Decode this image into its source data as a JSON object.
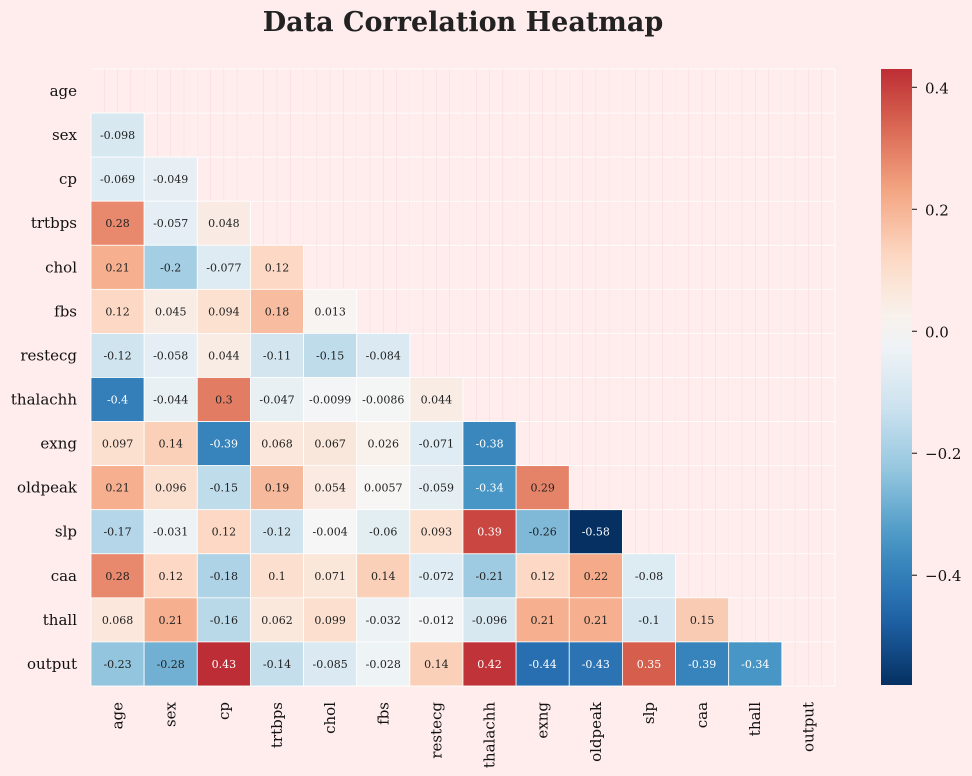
{
  "chart_data": {
    "type": "heatmap",
    "title": "Data Correlation Heatmap",
    "variables": [
      "age",
      "sex",
      "cp",
      "trtbps",
      "chol",
      "fbs",
      "restecg",
      "thalachh",
      "exng",
      "oldpeak",
      "slp",
      "caa",
      "thall",
      "output"
    ],
    "mask": "upper-triangle-including-diagonal",
    "values": [
      [],
      [
        -0.098
      ],
      [
        -0.069,
        -0.049
      ],
      [
        0.28,
        -0.057,
        0.048
      ],
      [
        0.21,
        -0.2,
        -0.077,
        0.12
      ],
      [
        0.12,
        0.045,
        0.094,
        0.18,
        0.013
      ],
      [
        -0.12,
        -0.058,
        0.044,
        -0.11,
        -0.15,
        -0.084
      ],
      [
        -0.4,
        -0.044,
        0.3,
        -0.047,
        -0.0099,
        -0.0086,
        0.044
      ],
      [
        0.097,
        0.14,
        -0.39,
        0.068,
        0.067,
        0.026,
        -0.071,
        -0.38
      ],
      [
        0.21,
        0.096,
        -0.15,
        0.19,
        0.054,
        0.0057,
        -0.059,
        -0.34,
        0.29
      ],
      [
        -0.17,
        -0.031,
        0.12,
        -0.12,
        -0.004,
        -0.06,
        0.093,
        0.39,
        -0.26,
        -0.58
      ],
      [
        0.28,
        0.12,
        -0.18,
        0.1,
        0.071,
        0.14,
        -0.072,
        -0.21,
        0.12,
        0.22,
        -0.08
      ],
      [
        0.068,
        0.21,
        -0.16,
        0.062,
        0.099,
        -0.032,
        -0.012,
        -0.096,
        0.21,
        0.21,
        -0.1,
        0.15
      ],
      [
        -0.23,
        -0.28,
        0.43,
        -0.14,
        -0.085,
        -0.028,
        0.14,
        0.42,
        -0.44,
        -0.43,
        0.35,
        -0.39,
        -0.34
      ]
    ],
    "colormap": "RdBu_r",
    "vmin": -0.58,
    "vmax": 0.43,
    "center": 0,
    "colorbar_ticks": [
      0.4,
      0.2,
      0.0,
      -0.2,
      -0.4
    ],
    "colorbar_tick_labels": [
      "0.4",
      "0.2",
      "0.0",
      "−0.2",
      "−0.4"
    ]
  }
}
